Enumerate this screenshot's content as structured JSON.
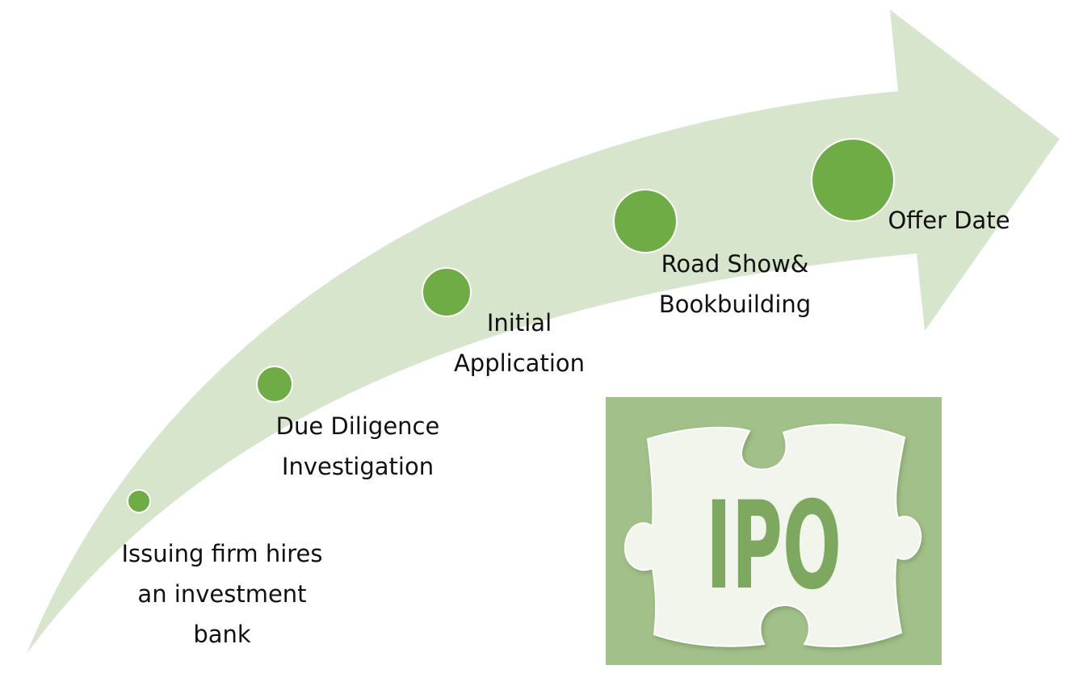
{
  "diagram": {
    "steps": [
      {
        "lines": [
          "Issuing firm hires",
          "an investment",
          "bank"
        ]
      },
      {
        "lines": [
          "Due Diligence",
          "Investigation"
        ]
      },
      {
        "lines": [
          "Initial",
          "Application"
        ]
      },
      {
        "lines": [
          "Road Show&",
          "Bookbuilding"
        ]
      },
      {
        "lines": [
          "Offer Date"
        ]
      }
    ],
    "logo_text": "IPO"
  },
  "colors": {
    "arrow": "#d7e5cd",
    "dot": "#6fac46",
    "dot_border": "#ffffff",
    "tile_bg": "#a2c08a",
    "piece": "#f1f5ec",
    "logo_letters": "#7ea860",
    "label_text": "#111111"
  },
  "icons": [
    "growth-arrow",
    "step-dot",
    "puzzle-piece"
  ]
}
